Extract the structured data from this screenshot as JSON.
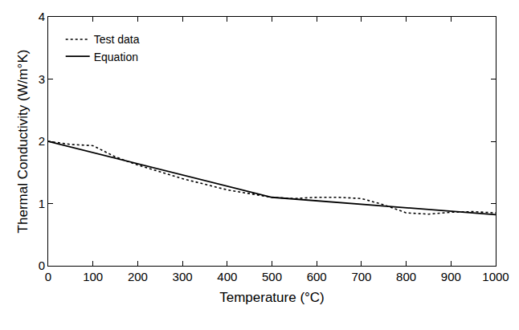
{
  "chart_data": {
    "type": "line",
    "x_label": "Temperature (°C)",
    "y_label": "Thermal Conductivity (W/m°K)",
    "xlim": [
      0,
      1000
    ],
    "xticks": [
      0,
      100,
      200,
      300,
      400,
      500,
      600,
      700,
      800,
      900,
      1000
    ],
    "ylim": [
      0,
      4
    ],
    "yticks": [
      0,
      1,
      2,
      3,
      4
    ],
    "grid": false,
    "legend": "upper left",
    "series": [
      {
        "name": "Test data",
        "color": "#000000",
        "line_style": "dotted",
        "x": [
          0,
          50,
          100,
          150,
          200,
          300,
          400,
          500,
          550,
          600,
          650,
          700,
          750,
          800,
          850,
          900,
          950,
          1000
        ],
        "values": [
          2.0,
          1.95,
          1.93,
          1.75,
          1.62,
          1.4,
          1.22,
          1.1,
          1.08,
          1.1,
          1.1,
          1.08,
          0.98,
          0.85,
          0.83,
          0.86,
          0.87,
          0.85
        ]
      },
      {
        "name": "Equation",
        "color": "#000000",
        "line_style": "solid",
        "x": [
          0,
          500,
          1000
        ],
        "values": [
          2.0,
          1.1,
          0.82
        ]
      }
    ]
  }
}
